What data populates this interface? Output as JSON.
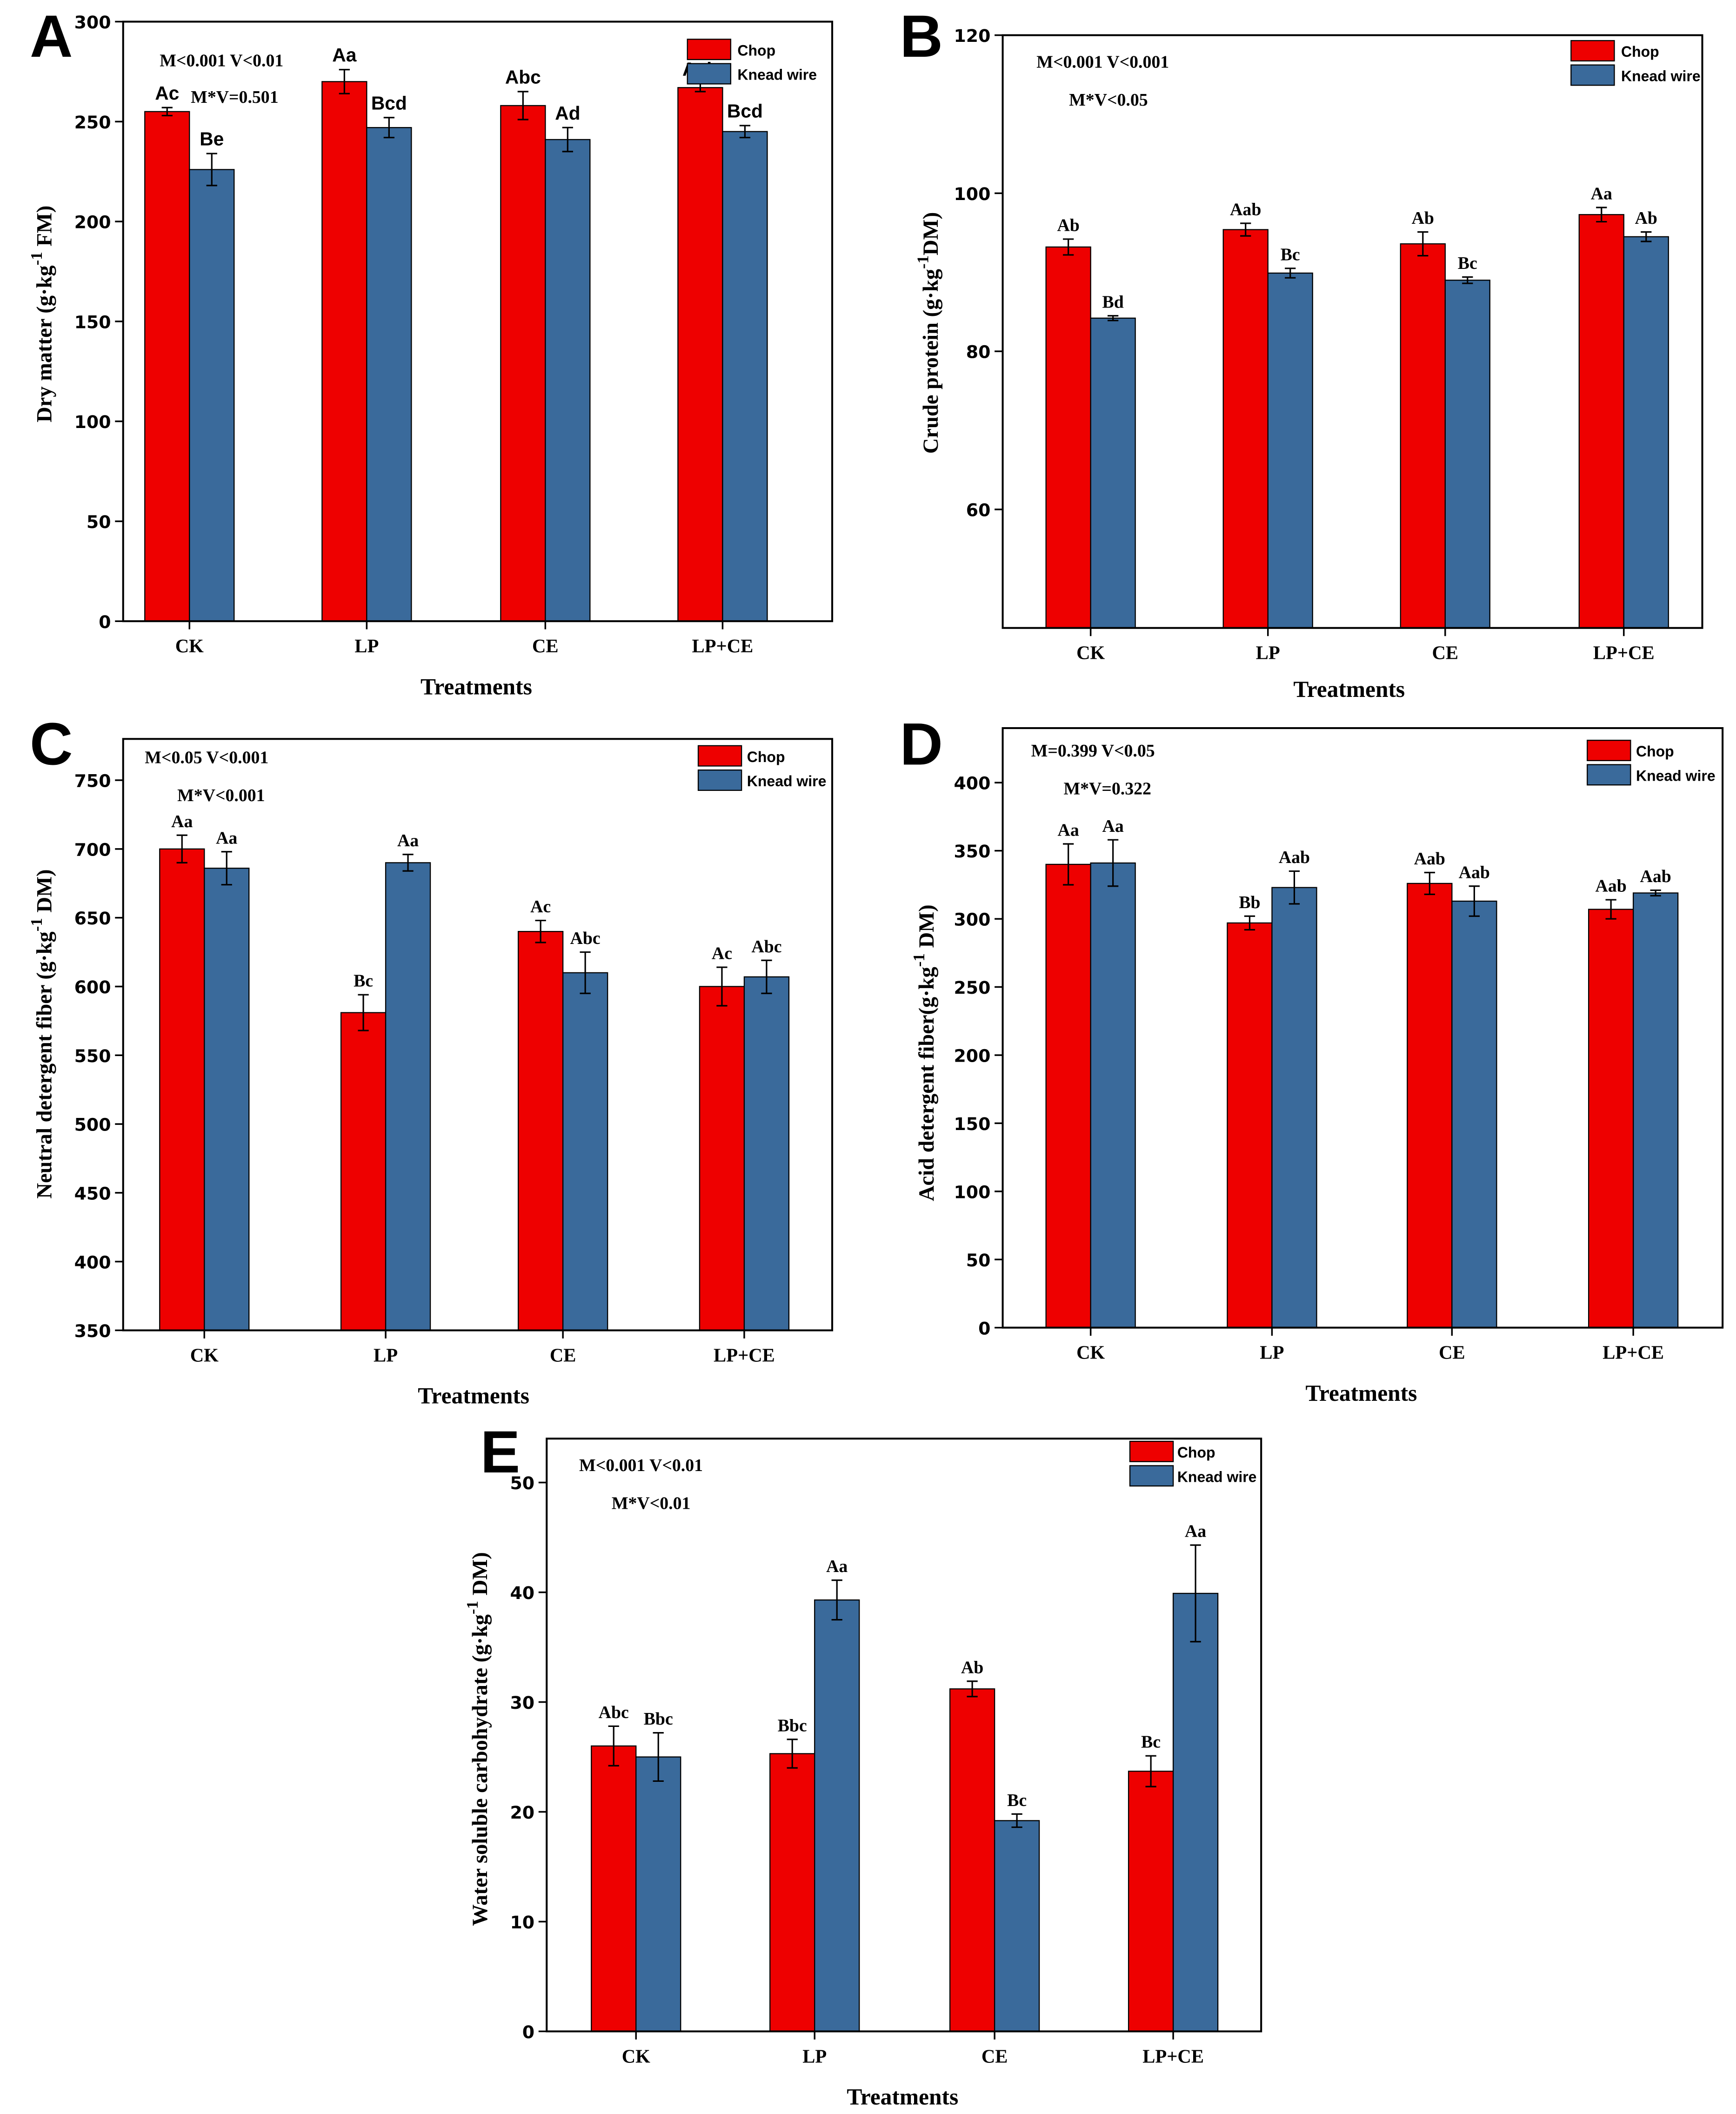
{
  "colors": {
    "chop": "#ee0000",
    "knead": "#3a6a9b"
  },
  "chart_data": [
    {
      "panel": "A",
      "type": "bar",
      "categories": [
        "CK",
        "LP",
        "CE",
        "LP+CE"
      ],
      "series": [
        {
          "name": "Chop",
          "values": [
            255,
            270,
            258,
            267
          ],
          "errors": [
            2,
            6,
            7,
            2
          ],
          "letters": [
            "Ac",
            "Aa",
            "Abc",
            "Aab"
          ]
        },
        {
          "name": "Knead wire",
          "values": [
            226,
            247,
            241,
            245
          ],
          "errors": [
            8,
            5,
            6,
            3
          ],
          "letters": [
            "Be",
            "Bcd",
            "Ad",
            "Bcd"
          ]
        }
      ],
      "ylabel_main": "Dry matter (g·kg",
      "ylabel_sup": "-1",
      "ylabel_end": " FM)",
      "xlabel": "Treatments",
      "ylim": [
        0,
        300
      ],
      "yticks": [
        0,
        50,
        100,
        150,
        200,
        250,
        300
      ],
      "stats": [
        "M<0.001   V<0.01",
        "M*V=0.501"
      ]
    },
    {
      "panel": "B",
      "type": "bar",
      "categories": [
        "CK",
        "LP",
        "CE",
        "LP+CE"
      ],
      "series": [
        {
          "name": "Chop",
          "values": [
            93.2,
            95.4,
            93.6,
            97.3
          ],
          "errors": [
            1.0,
            0.8,
            1.5,
            0.9
          ],
          "letters": [
            "Ab",
            "Aab",
            "Ab",
            "Aa"
          ]
        },
        {
          "name": "Knead wire",
          "values": [
            84.2,
            89.9,
            89.0,
            94.5
          ],
          "errors": [
            0.3,
            0.6,
            0.4,
            0.6
          ],
          "letters": [
            "Bd",
            "Bc",
            "Bc",
            "Ab"
          ]
        }
      ],
      "ylabel_main": "Crude protein (g·kg",
      "ylabel_sup": "-1",
      "ylabel_end": "DM)",
      "xlabel": "Treatments",
      "ylim": [
        45,
        120
      ],
      "yticks": [
        60,
        80,
        100,
        120
      ],
      "stats": [
        "M<0.001   V<0.001",
        "M*V<0.05"
      ]
    },
    {
      "panel": "C",
      "type": "bar",
      "categories": [
        "CK",
        "LP",
        "CE",
        "LP+CE"
      ],
      "series": [
        {
          "name": "Chop",
          "values": [
            700,
            581,
            640,
            600
          ],
          "errors": [
            10,
            13,
            8,
            14
          ],
          "letters": [
            "Aa",
            "Bc",
            "Ac",
            "Ac"
          ]
        },
        {
          "name": "Knead wire",
          "values": [
            686,
            690,
            610,
            607
          ],
          "errors": [
            12,
            6,
            15,
            12
          ],
          "letters": [
            "Aa",
            "Aa",
            "Abc",
            "Abc"
          ]
        }
      ],
      "ylabel_main": "Neutral detergent fiber (g·kg",
      "ylabel_sup": "-1",
      "ylabel_end": " DM)",
      "xlabel": "Treatments",
      "ylim": [
        350,
        780
      ],
      "yticks": [
        350,
        400,
        450,
        500,
        550,
        600,
        650,
        700,
        750
      ],
      "stats": [
        "M<0.05   V<0.001",
        "M*V<0.001"
      ]
    },
    {
      "panel": "D",
      "type": "bar",
      "categories": [
        "CK",
        "LP",
        "CE",
        "LP+CE"
      ],
      "series": [
        {
          "name": "Chop",
          "values": [
            340,
            297,
            326,
            307
          ],
          "errors": [
            15,
            5,
            8,
            7
          ],
          "letters": [
            "Aa",
            "Bb",
            "Aab",
            "Aab"
          ]
        },
        {
          "name": "Knead wire",
          "values": [
            341,
            323,
            313,
            319
          ],
          "errors": [
            17,
            12,
            11,
            2
          ],
          "letters": [
            "Aa",
            "Aab",
            "Aab",
            "Aab"
          ]
        }
      ],
      "ylabel_main": "Acid detergent fiber(g·kg",
      "ylabel_sup": "-1",
      "ylabel_end": " DM)",
      "xlabel": "Treatments",
      "ylim": [
        0,
        440
      ],
      "yticks": [
        0,
        50,
        100,
        150,
        200,
        250,
        300,
        350,
        400
      ],
      "stats": [
        "M=0.399   V<0.05",
        "M*V=0.322"
      ]
    },
    {
      "panel": "E",
      "type": "bar",
      "categories": [
        "CK",
        "LP",
        "CE",
        "LP+CE"
      ],
      "series": [
        {
          "name": "Chop",
          "values": [
            26.0,
            25.3,
            31.2,
            23.7
          ],
          "errors": [
            1.8,
            1.3,
            0.7,
            1.4
          ],
          "letters": [
            "Abc",
            "Bbc",
            "Ab",
            "Bc"
          ]
        },
        {
          "name": "Knead wire",
          "values": [
            25.0,
            39.3,
            19.2,
            39.9
          ],
          "errors": [
            2.2,
            1.8,
            0.6,
            4.4
          ],
          "letters": [
            "Bbc",
            "Aa",
            "Bc",
            "Aa"
          ]
        }
      ],
      "ylabel_main": "Water soluble carbohydrate (g·kg",
      "ylabel_sup": "-1",
      "ylabel_end": " DM)",
      "xlabel": "Treatments",
      "ylim": [
        0,
        54
      ],
      "yticks": [
        0,
        10,
        20,
        30,
        40,
        50
      ],
      "stats": [
        "M<0.001   V<0.01",
        "M*V<0.01"
      ]
    }
  ]
}
